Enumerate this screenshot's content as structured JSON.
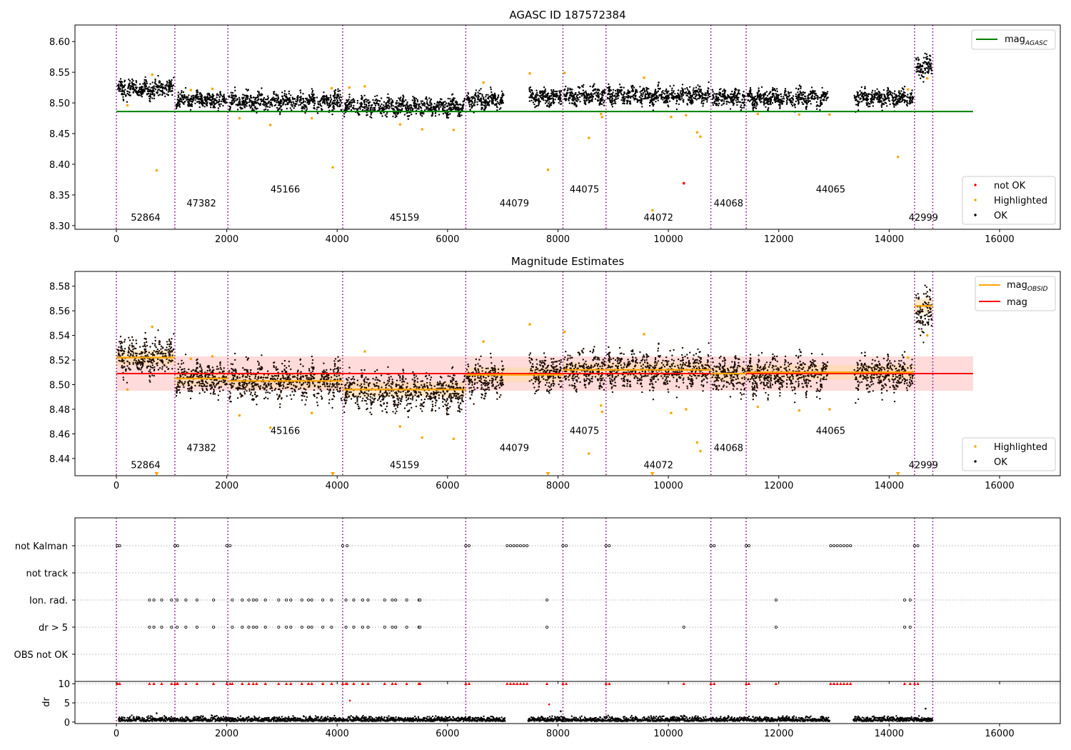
{
  "colors": {
    "ok": "#000000",
    "highlighted": "#ffa500",
    "not_ok": "#ff0000",
    "agasc_line": "#008000",
    "mag_line": "#ff0000",
    "obsid_line": "#ffa500",
    "obsid_boundary": "#800080",
    "mag_band": "#ffcccc",
    "obsid_band": "#ffd9a0"
  },
  "chart_data": [
    {
      "type": "scatter",
      "title": "AGASC ID 187572384",
      "xlabel": "",
      "ylabel": "",
      "xlim": [
        -750,
        17100
      ],
      "ylim": [
        8.294,
        8.627
      ],
      "xticks": [
        "0",
        "2000",
        "4000",
        "6000",
        "8000",
        "10000",
        "12000",
        "14000",
        "16000"
      ],
      "yticks": [
        "8.30",
        "8.35",
        "8.40",
        "8.45",
        "8.50",
        "8.55",
        "8.60"
      ],
      "grid": false,
      "legend_upper": {
        "position": "top-right",
        "entries": [
          {
            "label": "mag",
            "subscript": "AGASC",
            "marker": "line"
          }
        ]
      },
      "legend_lower": {
        "position": "bottom-right",
        "entries": [
          {
            "label": "not OK",
            "marker": "dot"
          },
          {
            "label": "Highlighted",
            "marker": "dot"
          },
          {
            "label": "OK",
            "marker": "dot"
          }
        ]
      },
      "mag_agasc": {
        "value": 8.486,
        "x": [
          0,
          15520
        ]
      },
      "obsid_boundaries": [
        0,
        1060,
        2020,
        4100,
        6330,
        8090,
        8870,
        10770,
        11410,
        14460,
        14790
      ],
      "obsid_labels": [
        {
          "text": "52864",
          "x": 530,
          "y": 8.308
        },
        {
          "text": "47382",
          "x": 1540,
          "y": 8.331
        },
        {
          "text": "45166",
          "x": 3060,
          "y": 8.354
        },
        {
          "text": "45159",
          "x": 5220,
          "y": 8.308
        },
        {
          "text": "44079",
          "x": 7210,
          "y": 8.331
        },
        {
          "text": "44075",
          "x": 8480,
          "y": 8.354
        },
        {
          "text": "44072",
          "x": 9820,
          "y": 8.308
        },
        {
          "text": "44068",
          "x": 11090,
          "y": 8.331
        },
        {
          "text": "44065",
          "x": 12940,
          "y": 8.354
        },
        {
          "text": "42999",
          "x": 14620,
          "y": 8.308
        }
      ],
      "series": [
        {
          "name": "OK",
          "segments": [
            {
              "x0": 0,
              "x1": 1060,
              "mean": 8.523,
              "spread": 0.0085
            },
            {
              "x0": 1060,
              "x1": 2020,
              "mean": 8.505,
              "spread": 0.0075
            },
            {
              "x0": 2020,
              "x1": 4100,
              "mean": 8.503,
              "spread": 0.0085
            },
            {
              "x0": 4100,
              "x1": 6330,
              "mean": 8.494,
              "spread": 0.0085
            },
            {
              "x0": 6330,
              "x1": 7040,
              "mean": 8.505,
              "spread": 0.0085
            },
            {
              "x0": 7460,
              "x1": 8090,
              "mean": 8.51,
              "spread": 0.0085
            },
            {
              "x0": 8090,
              "x1": 8870,
              "mean": 8.512,
              "spread": 0.0085
            },
            {
              "x0": 8870,
              "x1": 10770,
              "mean": 8.512,
              "spread": 0.0085
            },
            {
              "x0": 10770,
              "x1": 11410,
              "mean": 8.508,
              "spread": 0.0085
            },
            {
              "x0": 11410,
              "x1": 12920,
              "mean": 8.508,
              "spread": 0.0085
            },
            {
              "x0": 13350,
              "x1": 14460,
              "mean": 8.508,
              "spread": 0.0085
            },
            {
              "x0": 14460,
              "x1": 14790,
              "mean": 8.56,
              "spread": 0.011
            }
          ]
        },
        {
          "name": "Highlighted",
          "points": [
            [
              730,
              8.39
            ],
            [
              3920,
              8.395
            ],
            [
              7820,
              8.391
            ],
            [
              9710,
              8.325
            ],
            [
              14160,
              8.412
            ],
            [
              8560,
              8.443
            ],
            [
              10580,
              8.445
            ],
            [
              10520,
              8.452
            ],
            [
              2790,
              8.464
            ],
            [
              5540,
              8.457
            ],
            [
              6110,
              8.456
            ],
            [
              5140,
              8.465
            ],
            [
              3540,
              8.475
            ],
            [
              2230,
              8.475
            ],
            [
              10050,
              8.477
            ],
            [
              10320,
              8.48
            ],
            [
              7490,
              8.548
            ],
            [
              650,
              8.546
            ],
            [
              9560,
              8.541
            ],
            [
              8120,
              8.549
            ],
            [
              6650,
              8.533
            ],
            [
              1350,
              8.521
            ],
            [
              1740,
              8.523
            ],
            [
              4500,
              8.527
            ],
            [
              14340,
              8.522
            ],
            [
              8780,
              8.482
            ],
            [
              8800,
              8.477
            ],
            [
              11620,
              8.482
            ],
            [
              12370,
              8.481
            ],
            [
              12920,
              8.481
            ],
            [
              200,
              8.496
            ],
            [
              3900,
              8.524
            ],
            [
              4220,
              8.525
            ],
            [
              14690,
              8.54
            ]
          ]
        },
        {
          "name": "not OK",
          "points": [
            [
              10280,
              8.369
            ]
          ]
        }
      ]
    },
    {
      "type": "scatter",
      "title": "Magnitude Estimates",
      "xlabel": "",
      "ylabel": "",
      "xlim": [
        -750,
        17100
      ],
      "ylim": [
        8.426,
        8.592
      ],
      "xticks": [
        "0",
        "2000",
        "4000",
        "6000",
        "8000",
        "10000",
        "12000",
        "14000",
        "16000"
      ],
      "yticks": [
        "8.44",
        "8.46",
        "8.48",
        "8.50",
        "8.52",
        "8.54",
        "8.56",
        "8.58"
      ],
      "grid": false,
      "legend_upper": {
        "position": "top-right",
        "entries": [
          {
            "label": "mag",
            "subscript": "OBSID",
            "marker": "line"
          },
          {
            "label": "mag",
            "marker": "line"
          }
        ]
      },
      "legend_lower": {
        "position": "bottom-right",
        "entries": [
          {
            "label": "Highlighted",
            "marker": "dot"
          },
          {
            "label": "OK",
            "marker": "dot"
          }
        ]
      },
      "mag": {
        "value": 8.509,
        "band": [
          8.495,
          8.523
        ],
        "x": [
          0,
          15520
        ]
      },
      "mag_obsid": [
        {
          "x0": 0,
          "x1": 1060,
          "value": 8.522
        },
        {
          "x0": 1060,
          "x1": 2020,
          "value": 8.505
        },
        {
          "x0": 2020,
          "x1": 4100,
          "value": 8.503
        },
        {
          "x0": 4100,
          "x1": 6330,
          "value": 8.496
        },
        {
          "x0": 6330,
          "x1": 8090,
          "value": 8.508
        },
        {
          "x0": 8090,
          "x1": 8870,
          "value": 8.512
        },
        {
          "x0": 8870,
          "x1": 10770,
          "value": 8.512
        },
        {
          "x0": 10770,
          "x1": 11410,
          "value": 8.509
        },
        {
          "x0": 11410,
          "x1": 14460,
          "value": 8.51
        },
        {
          "x0": 14460,
          "x1": 14790,
          "value": 8.564
        }
      ],
      "obsid_labels": [
        {
          "text": "52864",
          "x": 530,
          "y": 8.432
        },
        {
          "text": "47382",
          "x": 1540,
          "y": 8.446
        },
        {
          "text": "45166",
          "x": 3060,
          "y": 8.46
        },
        {
          "text": "45159",
          "x": 5220,
          "y": 8.432
        },
        {
          "text": "44079",
          "x": 7210,
          "y": 8.446
        },
        {
          "text": "44075",
          "x": 8480,
          "y": 8.46
        },
        {
          "text": "44072",
          "x": 9820,
          "y": 8.432
        },
        {
          "text": "44068",
          "x": 11090,
          "y": 8.446
        },
        {
          "text": "44065",
          "x": 12940,
          "y": 8.46
        },
        {
          "text": "42999",
          "x": 14620,
          "y": 8.432
        }
      ],
      "series": [
        {
          "name": "OK",
          "segments": "same as first chart"
        },
        {
          "name": "Highlighted",
          "points": [
            [
              200,
              8.496
            ],
            [
              650,
              8.547
            ],
            [
              1350,
              8.521
            ],
            [
              1740,
              8.523
            ],
            [
              2230,
              8.475
            ],
            [
              2790,
              8.465
            ],
            [
              3540,
              8.477
            ],
            [
              4500,
              8.527
            ],
            [
              5140,
              8.466
            ],
            [
              5540,
              8.457
            ],
            [
              6110,
              8.456
            ],
            [
              6650,
              8.535
            ],
            [
              7490,
              8.549
            ],
            [
              8120,
              8.543
            ],
            [
              8560,
              8.444
            ],
            [
              8780,
              8.483
            ],
            [
              8800,
              8.478
            ],
            [
              9560,
              8.541
            ],
            [
              10050,
              8.477
            ],
            [
              10320,
              8.48
            ],
            [
              10520,
              8.453
            ],
            [
              10580,
              8.446
            ],
            [
              11620,
              8.482
            ],
            [
              12370,
              8.479
            ],
            [
              12920,
              8.48
            ],
            [
              14340,
              8.522
            ],
            [
              14690,
              8.54
            ]
          ]
        },
        {
          "name": "Highlighted (below axis)",
          "points": [
            [
              730,
              8.426
            ],
            [
              3920,
              8.426
            ],
            [
              7820,
              8.426
            ],
            [
              9710,
              8.426
            ],
            [
              14160,
              8.426
            ]
          ]
        }
      ]
    },
    {
      "type": "scatter",
      "title": "",
      "xlabel": "",
      "ylabel": "",
      "xlim": [
        -750,
        17100
      ],
      "categories": [
        "not Kalman",
        "not track",
        "Ion. rad.",
        "dr > 5",
        "OBS not OK"
      ],
      "flag_points": {
        "not Kalman": [
          20,
          60,
          1060,
          1110,
          2000,
          2060,
          4100,
          4180,
          6330,
          6390,
          7080,
          7140,
          7200,
          7260,
          7320,
          7380,
          7440,
          8090,
          8150,
          8870,
          8930,
          10770,
          10830,
          11410,
          11460,
          12940,
          13000,
          13060,
          13120,
          13180,
          13240,
          13300,
          14460,
          14520
        ],
        "not track": [],
        "Ion. rad.": [
          600,
          680,
          820,
          1000,
          1100,
          1260,
          1460,
          1760,
          2100,
          2280,
          2400,
          2480,
          2540,
          2700,
          2940,
          3080,
          3160,
          3360,
          3480,
          3540,
          3740,
          3900,
          4160,
          4300,
          4460,
          4560,
          4860,
          5000,
          5060,
          5260,
          5480,
          5500,
          7800,
          11950,
          14280,
          14380
        ],
        "dr > 5": [
          600,
          680,
          820,
          1000,
          1100,
          1260,
          1460,
          1760,
          2100,
          2280,
          2400,
          2480,
          2540,
          2700,
          2940,
          3080,
          3160,
          3360,
          3480,
          3540,
          3740,
          3900,
          4160,
          4300,
          4460,
          4560,
          4860,
          5000,
          5060,
          5260,
          5480,
          5500,
          7800,
          10280,
          11950,
          14280,
          14380
        ],
        "OBS not OK": []
      }
    },
    {
      "type": "scatter",
      "title": "",
      "xlabel": "",
      "ylabel": "dr",
      "xlim": [
        -750,
        17100
      ],
      "ylim": [
        -0.4,
        10.6
      ],
      "xticks": [
        "0",
        "2000",
        "4000",
        "6000",
        "8000",
        "10000",
        "12000",
        "14000",
        "16000"
      ],
      "yticks": [
        "0",
        "5",
        "10"
      ],
      "clip_value": 10,
      "gaps": [
        [
          7040,
          7460
        ],
        [
          12920,
          13350
        ]
      ],
      "outliers": [
        [
          730,
          2.3
        ],
        [
          4230,
          5.6
        ],
        [
          7840,
          4.6
        ],
        [
          8050,
          2.8
        ],
        [
          14660,
          3.5
        ]
      ]
    }
  ]
}
